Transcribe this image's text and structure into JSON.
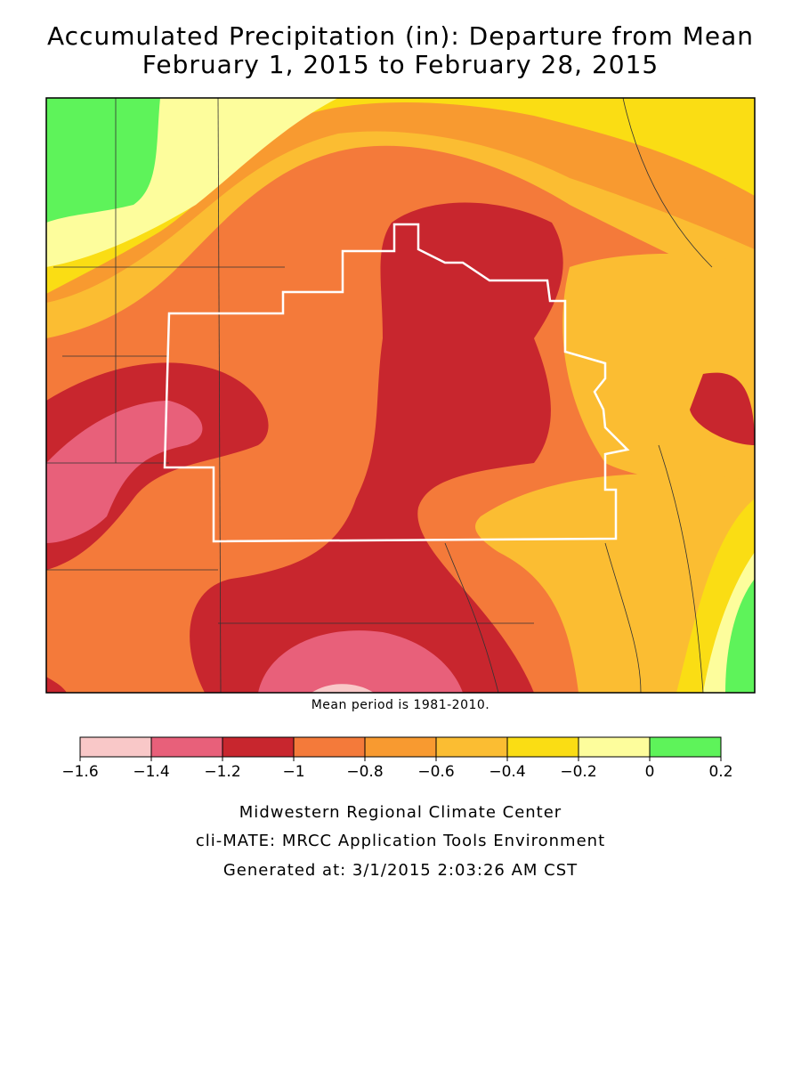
{
  "title": {
    "line1": "Accumulated Precipitation (in): Departure from Mean",
    "line2": "February 1, 2015 to February 28, 2015"
  },
  "map_note": "Mean period is 1981-2010.",
  "legend": {
    "ticks": [
      -1.6,
      -1.4,
      -1.2,
      -1,
      -0.8,
      -0.6,
      -0.4,
      -0.2,
      0,
      0.2
    ],
    "colors": [
      "#f9c8c8",
      "#e8607a",
      "#c8262e",
      "#f47a3a",
      "#f89a30",
      "#fbbd32",
      "#fadd14",
      "#fdfd9c",
      "#5ef35a"
    ]
  },
  "footer": {
    "line1": "Midwestern Regional Climate Center",
    "line2": "cli-MATE: MRCC Application Tools Environment",
    "line3": "Generated at: 3/1/2015 2:03:26 AM CST"
  }
}
